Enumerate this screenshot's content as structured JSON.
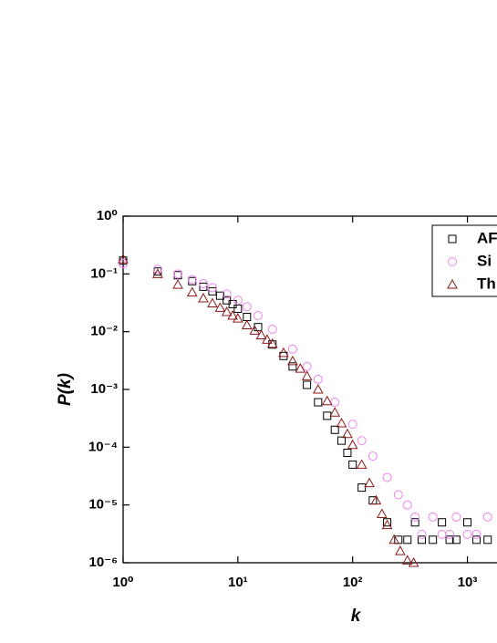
{
  "chart_data": {
    "type": "scatter",
    "log_x": true,
    "log_y": true,
    "x_label": "k",
    "y_label": "P(k)",
    "xlim": [
      1,
      1778
    ],
    "ylim": [
      1e-06,
      1
    ],
    "xticks": [
      {
        "value": 1,
        "label": "10⁰"
      },
      {
        "value": 10,
        "label": "10¹"
      },
      {
        "value": 100,
        "label": "10²"
      },
      {
        "value": 1000,
        "label": "10³"
      }
    ],
    "yticks": [
      {
        "value": 1e-06,
        "label": "10⁻⁶"
      },
      {
        "value": 1e-05,
        "label": "10⁻⁵"
      },
      {
        "value": 0.0001,
        "label": "10⁻⁴"
      },
      {
        "value": 0.001,
        "label": "10⁻³"
      },
      {
        "value": 0.01,
        "label": "10⁻²"
      },
      {
        "value": 0.1,
        "label": "10⁻¹"
      },
      {
        "value": 1,
        "label": "10⁰"
      }
    ],
    "legend": "upper right",
    "series": [
      {
        "name": "AF",
        "marker": "square",
        "color": "#000000",
        "x": [
          1,
          2,
          3,
          4,
          5,
          6,
          7,
          8,
          9,
          10,
          12,
          15,
          20,
          25,
          30,
          40,
          50,
          60,
          70,
          80,
          90,
          100,
          120,
          150,
          200,
          250,
          300,
          350,
          400,
          500,
          600,
          700,
          800,
          1000,
          1200,
          1500
        ],
        "values": [
          0.17,
          0.11,
          0.095,
          0.075,
          0.06,
          0.05,
          0.042,
          0.035,
          0.03,
          0.025,
          0.018,
          0.012,
          0.006,
          0.0038,
          0.0025,
          0.0012,
          0.0006,
          0.00035,
          0.0002,
          0.00013,
          8e-05,
          5e-05,
          2e-05,
          1.2e-05,
          5e-06,
          2.5e-06,
          2.5e-06,
          5e-06,
          2.5e-06,
          2.5e-06,
          5e-06,
          2.5e-06,
          2.5e-06,
          5e-06,
          2.5e-06,
          2.5e-06
        ]
      },
      {
        "name": "Si",
        "marker": "circle",
        "color": "#ee82ee",
        "x": [
          1,
          2,
          3,
          4,
          5,
          6,
          8,
          10,
          12,
          15,
          20,
          30,
          40,
          50,
          70,
          100,
          120,
          150,
          200,
          250,
          300,
          350,
          400,
          500,
          600,
          700,
          800,
          1000,
          1200,
          1500
        ],
        "values": [
          0.15,
          0.12,
          0.1,
          0.08,
          0.068,
          0.058,
          0.045,
          0.035,
          0.027,
          0.019,
          0.011,
          0.005,
          0.0025,
          0.0015,
          0.0006,
          0.00025,
          0.00013,
          7e-05,
          3e-05,
          1.5e-05,
          1e-05,
          6.2e-06,
          3.1e-06,
          6.2e-06,
          3.1e-06,
          3.1e-06,
          6.2e-06,
          3.1e-06,
          3.1e-06,
          6.2e-06
        ]
      },
      {
        "name": "Th",
        "marker": "triangle",
        "color": "#8b1a1a",
        "x": [
          1,
          2,
          3,
          4,
          5,
          6,
          7,
          8,
          9,
          10,
          12,
          14,
          16,
          18,
          20,
          25,
          30,
          35,
          40,
          50,
          60,
          70,
          80,
          90,
          100,
          120,
          140,
          160,
          180,
          200,
          230,
          260,
          300,
          340
        ],
        "values": [
          0.18,
          0.1,
          0.065,
          0.048,
          0.038,
          0.031,
          0.026,
          0.022,
          0.019,
          0.017,
          0.013,
          0.0105,
          0.0087,
          0.0073,
          0.0062,
          0.0043,
          0.0031,
          0.0023,
          0.0017,
          0.001,
          0.00063,
          0.0004,
          0.00026,
          0.00017,
          0.00011,
          5e-05,
          2.4e-05,
          1.2e-05,
          7e-06,
          4.5e-06,
          2.5e-06,
          1.6e-06,
          1.1e-06,
          1e-06
        ]
      }
    ]
  }
}
